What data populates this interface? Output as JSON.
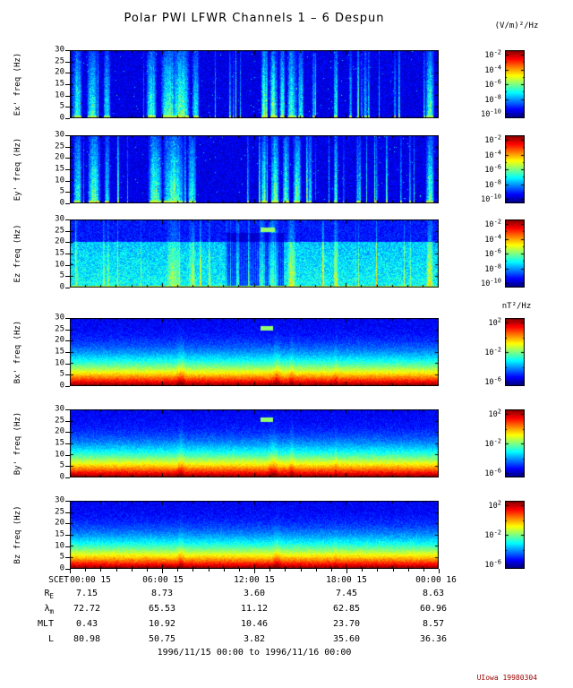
{
  "title": "Polar PWI LFWR Channels 1 – 6 Despun",
  "units": {
    "electric": "(V/m)²/Hz",
    "magnetic": "nT²/Hz"
  },
  "freq_ticks": [
    "30",
    "25",
    "20",
    "15",
    "10",
    "5",
    "0"
  ],
  "time_axis": {
    "prefix": "SCET",
    "ticks": [
      "00:00 15",
      "06:00 15",
      "12:00 15",
      "18:00 15",
      "00:00 16"
    ]
  },
  "colorbars": {
    "electric": {
      "base": "10",
      "exponents": [
        "-2",
        "-4",
        "-6",
        "-8",
        "-10"
      ]
    },
    "magnetic": {
      "base": "10",
      "exponents": [
        "2",
        "-2",
        "-6"
      ]
    }
  },
  "panels": [
    {
      "label": "Ex' freq (Hz)",
      "group": "electric",
      "style": "burst",
      "seed": 11,
      "features": [
        [
          0.02,
          0.012,
          0.85
        ],
        [
          0.06,
          0.015,
          0.9
        ],
        [
          0.1,
          0.01,
          0.7
        ],
        [
          0.22,
          0.015,
          0.85
        ],
        [
          0.265,
          0.02,
          0.95
        ],
        [
          0.3,
          0.025,
          1.0
        ],
        [
          0.34,
          0.01,
          0.8
        ],
        [
          0.525,
          0.008,
          0.95
        ],
        [
          0.55,
          0.01,
          1.0
        ],
        [
          0.575,
          0.008,
          0.9
        ],
        [
          0.6,
          0.012,
          0.95
        ],
        [
          0.625,
          0.008,
          0.8
        ],
        [
          0.66,
          0.005,
          0.6
        ],
        [
          0.72,
          0.006,
          0.9
        ],
        [
          0.76,
          0.004,
          0.5
        ],
        [
          0.8,
          0.005,
          0.6
        ],
        [
          0.88,
          0.004,
          0.5
        ],
        [
          0.975,
          0.012,
          0.95
        ]
      ]
    },
    {
      "label": "Ey' freq (Hz)",
      "group": "electric",
      "style": "burst",
      "seed": 23,
      "features": [
        [
          0.02,
          0.012,
          0.8
        ],
        [
          0.065,
          0.018,
          0.9
        ],
        [
          0.1,
          0.008,
          0.6
        ],
        [
          0.23,
          0.02,
          0.9
        ],
        [
          0.28,
          0.03,
          1.0
        ],
        [
          0.33,
          0.012,
          0.85
        ],
        [
          0.525,
          0.008,
          0.9
        ],
        [
          0.555,
          0.012,
          1.0
        ],
        [
          0.585,
          0.01,
          0.9
        ],
        [
          0.615,
          0.012,
          0.95
        ],
        [
          0.65,
          0.006,
          0.7
        ],
        [
          0.72,
          0.006,
          0.9
        ],
        [
          0.78,
          0.005,
          0.55
        ],
        [
          0.83,
          0.004,
          0.5
        ],
        [
          0.975,
          0.012,
          0.9
        ]
      ]
    },
    {
      "label": "Ez freq (Hz)",
      "group": "electric",
      "style": "diffuse",
      "seed": 37,
      "notch": [
        0.42,
        0.58
      ],
      "dash": [
        0.515,
        0.555
      ],
      "features": [
        [
          0.28,
          0.02,
          0.5
        ],
        [
          0.33,
          0.01,
          0.45
        ],
        [
          0.52,
          0.01,
          0.8
        ],
        [
          0.55,
          0.015,
          0.9
        ],
        [
          0.6,
          0.012,
          0.7
        ],
        [
          0.72,
          0.006,
          0.8
        ],
        [
          0.975,
          0.01,
          0.7
        ]
      ]
    },
    {
      "label": "Bx' freq (Hz)",
      "group": "magnetic",
      "style": "gradient",
      "seed": 51,
      "dash": [
        0.515,
        0.55
      ],
      "features": [
        [
          0.3,
          0.012,
          0.5
        ],
        [
          0.56,
          0.012,
          0.45
        ],
        [
          0.6,
          0.008,
          0.4
        ],
        [
          0.72,
          0.005,
          0.35
        ]
      ]
    },
    {
      "label": "By' freq (Hz)",
      "group": "magnetic",
      "style": "gradient",
      "seed": 67,
      "dash": [
        0.515,
        0.55
      ],
      "features": [
        [
          0.3,
          0.01,
          0.45
        ],
        [
          0.55,
          0.014,
          0.5
        ],
        [
          0.6,
          0.008,
          0.4
        ],
        [
          0.72,
          0.005,
          0.3
        ]
      ]
    },
    {
      "label": "Bz freq (Hz)",
      "group": "magnetic",
      "style": "gradient",
      "seed": 83,
      "features": [
        [
          0.3,
          0.01,
          0.4
        ],
        [
          0.56,
          0.012,
          0.4
        ],
        [
          0.72,
          0.005,
          0.3
        ]
      ]
    }
  ],
  "ephemeris": {
    "rows": [
      {
        "label_base": "R",
        "label_sub": "E",
        "values": [
          "7.15",
          "8.73",
          "3.60",
          "7.45",
          "8.63"
        ]
      },
      {
        "label_base": "λ",
        "label_sub": "m",
        "values": [
          "72.72",
          "65.53",
          "11.12",
          "62.85",
          "60.96"
        ]
      },
      {
        "label_base": "MLT",
        "label_sub": "",
        "values": [
          "0.43",
          "10.92",
          "10.46",
          "23.70",
          "8.57"
        ]
      },
      {
        "label_base": "L",
        "label_sub": "",
        "values": [
          "80.98",
          "50.75",
          "3.82",
          "35.60",
          "36.36"
        ]
      }
    ]
  },
  "footer": "1996/11/15 00:00 to 1996/11/16 00:00",
  "credit": "UIowa 19980304",
  "colors": {
    "frame": "#000000",
    "credit": "#990000",
    "background": "#ffffff"
  },
  "chart_data": [
    {
      "type": "heatmap",
      "name": "Ex'",
      "ylabel": "Ex' freq (Hz)",
      "ylim": [
        0,
        30
      ],
      "y_ticks": [
        0,
        5,
        10,
        15,
        20,
        25,
        30
      ],
      "x_range": [
        "1996/11/15 00:00",
        "1996/11/16 00:00"
      ],
      "x_ticks": [
        "00:00 15",
        "06:00 15",
        "12:00 15",
        "18:00 15",
        "00:00 16"
      ],
      "colorbar": {
        "unit": "(V/m)²/Hz",
        "tick_labels": [
          "10^-2",
          "10^-4",
          "10^-6",
          "10^-8",
          "10^-10"
        ]
      },
      "pattern": "dark blue background with intermittent broadband cyan-green vertical bursts near 00-02h, 05-08h, 12.5-15h, 17h, 19h, 23.5h; bright green line at 0 Hz during bursts"
    },
    {
      "type": "heatmap",
      "name": "Ey'",
      "ylabel": "Ey' freq (Hz)",
      "ylim": [
        0,
        30
      ],
      "y_ticks": [
        0,
        5,
        10,
        15,
        20,
        25,
        30
      ],
      "x_range": [
        "1996/11/15 00:00",
        "1996/11/16 00:00"
      ],
      "x_ticks": [
        "00:00 15",
        "06:00 15",
        "12:00 15",
        "18:00 15",
        "00:00 16"
      ],
      "colorbar": {
        "unit": "(V/m)²/Hz",
        "tick_labels": [
          "10^-2",
          "10^-4",
          "10^-6",
          "10^-8",
          "10^-10"
        ]
      },
      "pattern": "same burst pattern as Ex' with broadband vertical streaks"
    },
    {
      "type": "heatmap",
      "name": "Ez",
      "ylabel": "Ez freq (Hz)",
      "ylim": [
        0,
        30
      ],
      "y_ticks": [
        0,
        5,
        10,
        15,
        20,
        25,
        30
      ],
      "x_range": [
        "1996/11/15 00:00",
        "1996/11/16 00:00"
      ],
      "x_ticks": [
        "00:00 15",
        "06:00 15",
        "12:00 15",
        "18:00 15",
        "00:00 16"
      ],
      "colorbar": {
        "unit": "(V/m)²/Hz",
        "tick_labels": [
          "10^-2",
          "10^-4",
          "10^-6",
          "10^-8",
          "10^-10"
        ]
      },
      "pattern": "diffuse cyan-green below ~20 Hz, darker finely-striped region ~10-14h, cyan dash near 24 Hz at ~12.5h, bright line at 0 Hz"
    },
    {
      "type": "heatmap",
      "name": "Bx'",
      "ylabel": "Bx' freq (Hz)",
      "ylim": [
        0,
        30
      ],
      "y_ticks": [
        0,
        5,
        10,
        15,
        20,
        25,
        30
      ],
      "x_range": [
        "1996/11/15 00:00",
        "1996/11/16 00:00"
      ],
      "x_ticks": [
        "00:00 15",
        "06:00 15",
        "12:00 15",
        "18:00 15",
        "00:00 16"
      ],
      "colorbar": {
        "unit": "nT²/Hz",
        "tick_labels": [
          "10^2",
          "10^-2",
          "10^-6"
        ]
      },
      "pattern": "intense red-orange band below ~3 Hz grading through yellow and green to blue above ~10 Hz; faint vertical enhancements near 07h and 13-14h; cyan dash near 24 Hz at ~12.5h"
    },
    {
      "type": "heatmap",
      "name": "By'",
      "ylabel": "By' freq (Hz)",
      "ylim": [
        0,
        30
      ],
      "y_ticks": [
        0,
        5,
        10,
        15,
        20,
        25,
        30
      ],
      "x_range": [
        "1996/11/15 00:00",
        "1996/11/16 00:00"
      ],
      "x_ticks": [
        "00:00 15",
        "06:00 15",
        "12:00 15",
        "18:00 15",
        "00:00 16"
      ],
      "colorbar": {
        "unit": "nT²/Hz",
        "tick_labels": [
          "10^2",
          "10^-2",
          "10^-6"
        ]
      },
      "pattern": "same red-to-blue low-frequency gradient as Bx' with cyan dash near 24 Hz at ~12.5h"
    },
    {
      "type": "heatmap",
      "name": "Bz",
      "ylabel": "Bz freq (Hz)",
      "ylim": [
        0,
        30
      ],
      "y_ticks": [
        0,
        5,
        10,
        15,
        20,
        25,
        30
      ],
      "x_range": [
        "1996/11/15 00:00",
        "1996/11/16 00:00"
      ],
      "x_ticks": [
        "00:00 15",
        "06:00 15",
        "12:00 15",
        "18:00 15",
        "00:00 16"
      ],
      "colorbar": {
        "unit": "nT²/Hz",
        "tick_labels": [
          "10^2",
          "10^-2",
          "10^-6"
        ]
      },
      "pattern": "same red-to-blue low-frequency gradient, slightly weaker vertical features"
    },
    {
      "type": "table",
      "name": "ephemeris",
      "columns": [
        "00:00 15",
        "06:00 15",
        "12:00 15",
        "18:00 15",
        "00:00 16"
      ],
      "row_labels": [
        "R_E",
        "λ_m",
        "MLT",
        "L"
      ],
      "rows": [
        [
          7.15,
          8.73,
          3.6,
          7.45,
          8.63
        ],
        [
          72.72,
          65.53,
          11.12,
          62.85,
          60.96
        ],
        [
          0.43,
          10.92,
          10.46,
          23.7,
          8.57
        ],
        [
          80.98,
          50.75,
          3.82,
          35.6,
          36.36
        ]
      ]
    }
  ]
}
